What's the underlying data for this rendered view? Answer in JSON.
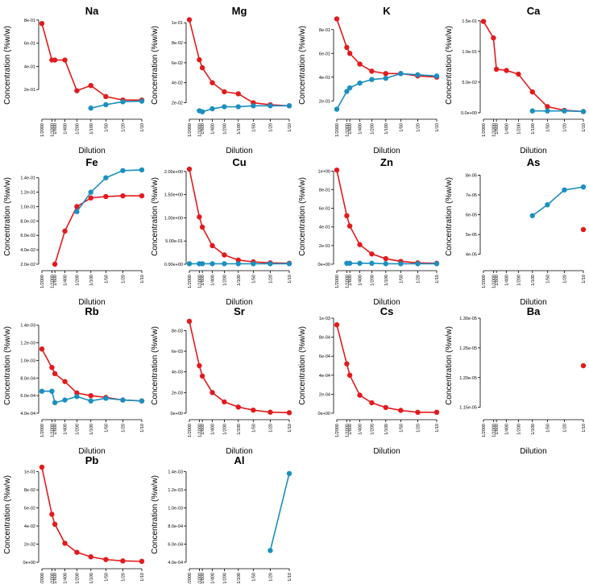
{
  "colors": {
    "red": "#e31a1c",
    "blue": "#1b8fc0"
  },
  "chart_data": [
    {
      "type": "line",
      "title": "Na",
      "xlabel": "Dilution",
      "ylabel": "Concentration (%w/w)",
      "categories": [
        "1/2000",
        "1/1000",
        "1/800",
        "1/400",
        "1/200",
        "1/100",
        "1/50",
        "1/20",
        "1/10"
      ],
      "yticks": [
        0.2,
        0.4,
        0.6,
        0.8
      ],
      "yticklabels": [
        "2e-01",
        "4e-01",
        "6e-01",
        "8e-01"
      ],
      "ylim": [
        0.0,
        0.82
      ],
      "series": [
        {
          "name": "red",
          "values": [
            0.77,
            0.455,
            0.455,
            0.455,
            0.19,
            0.235,
            0.14,
            0.11,
            0.11
          ]
        },
        {
          "name": "blue",
          "values": [
            null,
            null,
            null,
            null,
            null,
            0.04,
            0.07,
            0.095,
            0.1
          ]
        }
      ]
    },
    {
      "type": "line",
      "title": "Mg",
      "xlabel": "Dilution",
      "ylabel": "Concentration (%w/w)",
      "categories": [
        "1/2000",
        "1/1000",
        "1/800",
        "1/400",
        "1/200",
        "1/100",
        "1/50",
        "1/20",
        "1/10"
      ],
      "yticks": [
        0.02,
        0.04,
        0.06,
        0.08,
        0.1
      ],
      "yticklabels": [
        "2e-02",
        "4e-02",
        "6e-02",
        "8e-02",
        "1e-01"
      ],
      "ylim": [
        0.01,
        0.105
      ],
      "series": [
        {
          "name": "red",
          "values": [
            0.103,
            0.063,
            0.055,
            0.04,
            0.031,
            0.029,
            0.02,
            0.018,
            0.017
          ]
        },
        {
          "name": "blue",
          "values": [
            null,
            0.012,
            0.011,
            0.014,
            0.016,
            0.016,
            0.017,
            0.017,
            0.017
          ]
        }
      ]
    },
    {
      "type": "line",
      "title": "K",
      "xlabel": "Dilution",
      "ylabel": "Concentration (%w/w)",
      "categories": [
        "1/2000",
        "1/1000",
        "1/800",
        "1/400",
        "1/200",
        "1/100",
        "1/50",
        "1/20",
        "1/10"
      ],
      "yticks": [
        0.2,
        0.4,
        0.6,
        0.8
      ],
      "yticklabels": [
        "2e-01",
        "4e-01",
        "6e-01",
        "8e-01"
      ],
      "ylim": [
        0.1,
        0.9
      ],
      "series": [
        {
          "name": "red",
          "values": [
            0.89,
            0.65,
            0.6,
            0.51,
            0.45,
            0.43,
            0.43,
            0.41,
            0.4
          ]
        },
        {
          "name": "blue",
          "values": [
            0.13,
            0.28,
            0.31,
            0.35,
            0.38,
            0.39,
            0.43,
            0.42,
            0.41
          ]
        }
      ]
    },
    {
      "type": "line",
      "title": "Ca",
      "xlabel": "Dilution",
      "ylabel": "Concentration (%w/w)",
      "categories": [
        "1/2000",
        "1/1000",
        "1/800",
        "1/400",
        "1/200",
        "1/100",
        "1/50",
        "1/20",
        "1/10"
      ],
      "yticks": [
        0.0,
        0.05,
        0.1,
        0.15
      ],
      "yticklabels": [
        "0.0e+00",
        "5.0e-02",
        "1.0e-01",
        "1.5e-01"
      ],
      "ylim": [
        0.0,
        0.155
      ],
      "series": [
        {
          "name": "red",
          "values": [
            0.149,
            0.122,
            0.071,
            0.069,
            0.063,
            0.034,
            0.01,
            0.004,
            0.002
          ]
        },
        {
          "name": "blue",
          "values": [
            null,
            null,
            null,
            null,
            null,
            0.003,
            0.003,
            0.003,
            0.002
          ]
        }
      ]
    },
    {
      "type": "line",
      "title": "Fe",
      "xlabel": "Dilution",
      "ylabel": "Concentration (%w/w)",
      "categories": [
        "1/2000",
        "1/1000",
        "1/800",
        "1/400",
        "1/200",
        "1/100",
        "1/50",
        "1/20",
        "1/10"
      ],
      "yticks": [
        0.02,
        0.04,
        0.06,
        0.08,
        0.1,
        0.12,
        0.14
      ],
      "yticklabels": [
        "2.0e-02",
        "4.0e-02",
        "6.0e-02",
        "8.0e-02",
        "1.0e-01",
        "1.2e-01",
        "1.4e-01"
      ],
      "ylim": [
        0.02,
        0.152
      ],
      "series": [
        {
          "name": "red",
          "values": [
            null,
            null,
            0.02,
            0.066,
            0.1,
            0.112,
            0.114,
            0.115,
            0.115
          ]
        },
        {
          "name": "blue",
          "values": [
            null,
            null,
            null,
            null,
            0.093,
            0.12,
            0.14,
            0.15,
            0.151
          ]
        }
      ]
    },
    {
      "type": "line",
      "title": "Cu",
      "xlabel": "Dilution",
      "ylabel": "Concentration (%w/w)",
      "categories": [
        "1/2000",
        "1/1000",
        "1/800",
        "1/400",
        "1/200",
        "1/100",
        "1/50",
        "1/20",
        "1/10"
      ],
      "yticks": [
        0.0,
        0.5,
        1.0,
        1.5,
        2.0
      ],
      "yticklabels": [
        "0.00e+00",
        "5.00e-01",
        "1.00e+00",
        "1.50e+00",
        "2.00e+00"
      ],
      "ylim": [
        0.0,
        2.05
      ],
      "series": [
        {
          "name": "red",
          "values": [
            2.05,
            1.02,
            0.8,
            0.4,
            0.2,
            0.09,
            0.05,
            0.03,
            0.02
          ]
        },
        {
          "name": "blue",
          "values": [
            0.01,
            0.01,
            0.01,
            0.01,
            0.01,
            0.01,
            0.01,
            0.01,
            0.01
          ]
        }
      ]
    },
    {
      "type": "line",
      "title": "Zn",
      "xlabel": "Dilution",
      "ylabel": "Concentration (%w/w)",
      "categories": [
        "1/2000",
        "1/1000",
        "1/800",
        "1/400",
        "1/200",
        "1/100",
        "1/50",
        "1/20",
        "1/10"
      ],
      "yticks": [
        0.0,
        0.2,
        0.4,
        0.6,
        0.8,
        1.0
      ],
      "yticklabels": [
        "0e+00",
        "2e-01",
        "4e-01",
        "6e-01",
        "8e-01",
        "1e+00"
      ],
      "ylim": [
        0.0,
        1.02
      ],
      "series": [
        {
          "name": "red",
          "values": [
            1.01,
            0.52,
            0.41,
            0.21,
            0.11,
            0.06,
            0.03,
            0.015,
            0.01
          ]
        },
        {
          "name": "blue",
          "values": [
            null,
            0.01,
            0.01,
            0.01,
            0.01,
            0.005,
            0.005,
            0.005,
            0.005
          ]
        }
      ]
    },
    {
      "type": "line",
      "title": "As",
      "xlabel": "Dilution",
      "ylabel": "Concentration (%w/w)",
      "categories": [
        "1/2000",
        "1/1000",
        "1/800",
        "1/400",
        "1/200",
        "1/100",
        "1/50",
        "1/20",
        "1/10"
      ],
      "yticks": [
        4e-05,
        5e-05,
        6e-05,
        7e-05,
        8e-05
      ],
      "yticklabels": [
        "4e-05",
        "5e-05",
        "6e-05",
        "7e-05",
        "8e-05"
      ],
      "ylim": [
        3.5e-05,
        8.3e-05
      ],
      "series": [
        {
          "name": "red",
          "values": [
            null,
            null,
            null,
            null,
            null,
            null,
            null,
            null,
            5.25e-05
          ]
        },
        {
          "name": "blue",
          "values": [
            null,
            null,
            null,
            null,
            null,
            5.95e-05,
            6.5e-05,
            7.25e-05,
            7.4e-05
          ]
        }
      ]
    },
    {
      "type": "line",
      "title": "Rb",
      "xlabel": "Dilution",
      "ylabel": "Concentration (%w/w)",
      "categories": [
        "1/2000",
        "1/1000",
        "1/800",
        "1/400",
        "1/200",
        "1/100",
        "1/50",
        "1/20",
        "1/10"
      ],
      "yticks": [
        0.0004,
        0.0006,
        0.0008,
        0.001,
        0.0012,
        0.0014
      ],
      "yticklabels": [
        "4.0e-04",
        "6.0e-04",
        "8.0e-04",
        "1.0e-03",
        "1.2e-03",
        "1.4e-03"
      ],
      "ylim": [
        0.0004,
        0.00148
      ],
      "series": [
        {
          "name": "red",
          "values": [
            0.00113,
            0.00092,
            0.00085,
            0.00076,
            0.00063,
            0.0006,
            0.00058,
            0.00055,
            0.00054
          ]
        },
        {
          "name": "blue",
          "values": [
            0.00065,
            0.00065,
            0.00052,
            0.00055,
            0.00059,
            0.00054,
            0.00057,
            0.00055,
            0.00054
          ]
        }
      ]
    },
    {
      "type": "line",
      "title": "Sr",
      "xlabel": "Dilution",
      "ylabel": "Concentration (%w/w)",
      "categories": [
        "1/2000",
        "1/1000",
        "1/800",
        "1/400",
        "1/200",
        "1/100",
        "1/50",
        "1/20",
        "1/10"
      ],
      "yticks": [
        0.0,
        0.002,
        0.004,
        0.006,
        0.008
      ],
      "yticklabels": [
        "0e+00",
        "2e-03",
        "4e-03",
        "6e-03",
        "8e-03"
      ],
      "ylim": [
        0.0,
        0.0092
      ],
      "series": [
        {
          "name": "red",
          "values": [
            0.0089,
            0.0046,
            0.0036,
            0.002,
            0.0011,
            0.0006,
            0.0003,
            0.0001,
            5e-05
          ]
        }
      ]
    },
    {
      "type": "line",
      "title": "Cs",
      "xlabel": "Dilution",
      "ylabel": "Concentration (%w/w)",
      "categories": [
        "1/2000",
        "1/1000",
        "1/800",
        "1/400",
        "1/200",
        "1/100",
        "1/50",
        "1/20",
        "1/10"
      ],
      "yticks": [
        0.0,
        0.0002,
        0.0004,
        0.0006,
        0.0008,
        0.001
      ],
      "yticklabels": [
        "0e+00",
        "2e-04",
        "4e-04",
        "6e-04",
        "8e-04",
        "1e-03"
      ],
      "ylim": [
        0.0,
        0.001
      ],
      "series": [
        {
          "name": "red",
          "values": [
            0.00093,
            0.00052,
            0.0004,
            0.00019,
            0.00011,
            6e-05,
            3e-05,
            1e-05,
            1e-05
          ]
        }
      ]
    },
    {
      "type": "line",
      "title": "Ba",
      "xlabel": "Dilution",
      "ylabel": "Concentration (%w/w)",
      "categories": [
        "1/2000",
        "1/1000",
        "1/800",
        "1/400",
        "1/200",
        "1/100",
        "1/50",
        "1/20",
        "1/10"
      ],
      "yticks": [
        1.15e-05,
        1.2e-05,
        1.25e-05,
        1.3e-05
      ],
      "yticklabels": [
        "1.15e-05",
        "1.20e-05",
        "1.25e-05",
        "1.30e-05"
      ],
      "ylim": [
        1.14e-05,
        1.3e-05
      ],
      "series": [
        {
          "name": "red",
          "values": [
            null,
            null,
            null,
            null,
            null,
            null,
            null,
            null,
            1.22e-05
          ]
        }
      ]
    },
    {
      "type": "line",
      "title": "Pb",
      "xlabel": "Dilution",
      "ylabel": "Concentration (%w/w)",
      "categories": [
        "1/2000",
        "1/1000",
        "1/800",
        "1/400",
        "1/200",
        "1/100",
        "1/50",
        "1/20",
        "1/10"
      ],
      "yticks": [
        0.0,
        0.02,
        0.04,
        0.06,
        0.08,
        0.1
      ],
      "yticklabels": [
        "0e+00",
        "2e-02",
        "4e-02",
        "6e-02",
        "8e-02",
        "1e-01"
      ],
      "ylim": [
        0.0,
        0.105
      ],
      "series": [
        {
          "name": "red",
          "values": [
            0.105,
            0.053,
            0.042,
            0.021,
            0.011,
            0.006,
            0.003,
            0.0015,
            0.001
          ]
        }
      ]
    },
    {
      "type": "line",
      "title": "Al",
      "xlabel": "Dilution",
      "ylabel": "Concentration (%w/w)",
      "categories": [
        "1/2000",
        "1/1000",
        "1/800",
        "1/400",
        "1/200",
        "1/100",
        "1/50",
        "1/20",
        "1/10"
      ],
      "yticks": [
        0.0004,
        0.0006,
        0.0008,
        0.001,
        0.0012,
        0.0014
      ],
      "yticklabels": [
        "4.0e-04",
        "6.0e-04",
        "8.0e-04",
        "1.0e-03",
        "1.2e-03",
        "1.4e-03"
      ],
      "ylim": [
        0.0004,
        0.00145
      ],
      "series": [
        {
          "name": "blue",
          "values": [
            null,
            null,
            null,
            null,
            null,
            null,
            null,
            0.00053,
            0.00138
          ]
        }
      ]
    }
  ]
}
